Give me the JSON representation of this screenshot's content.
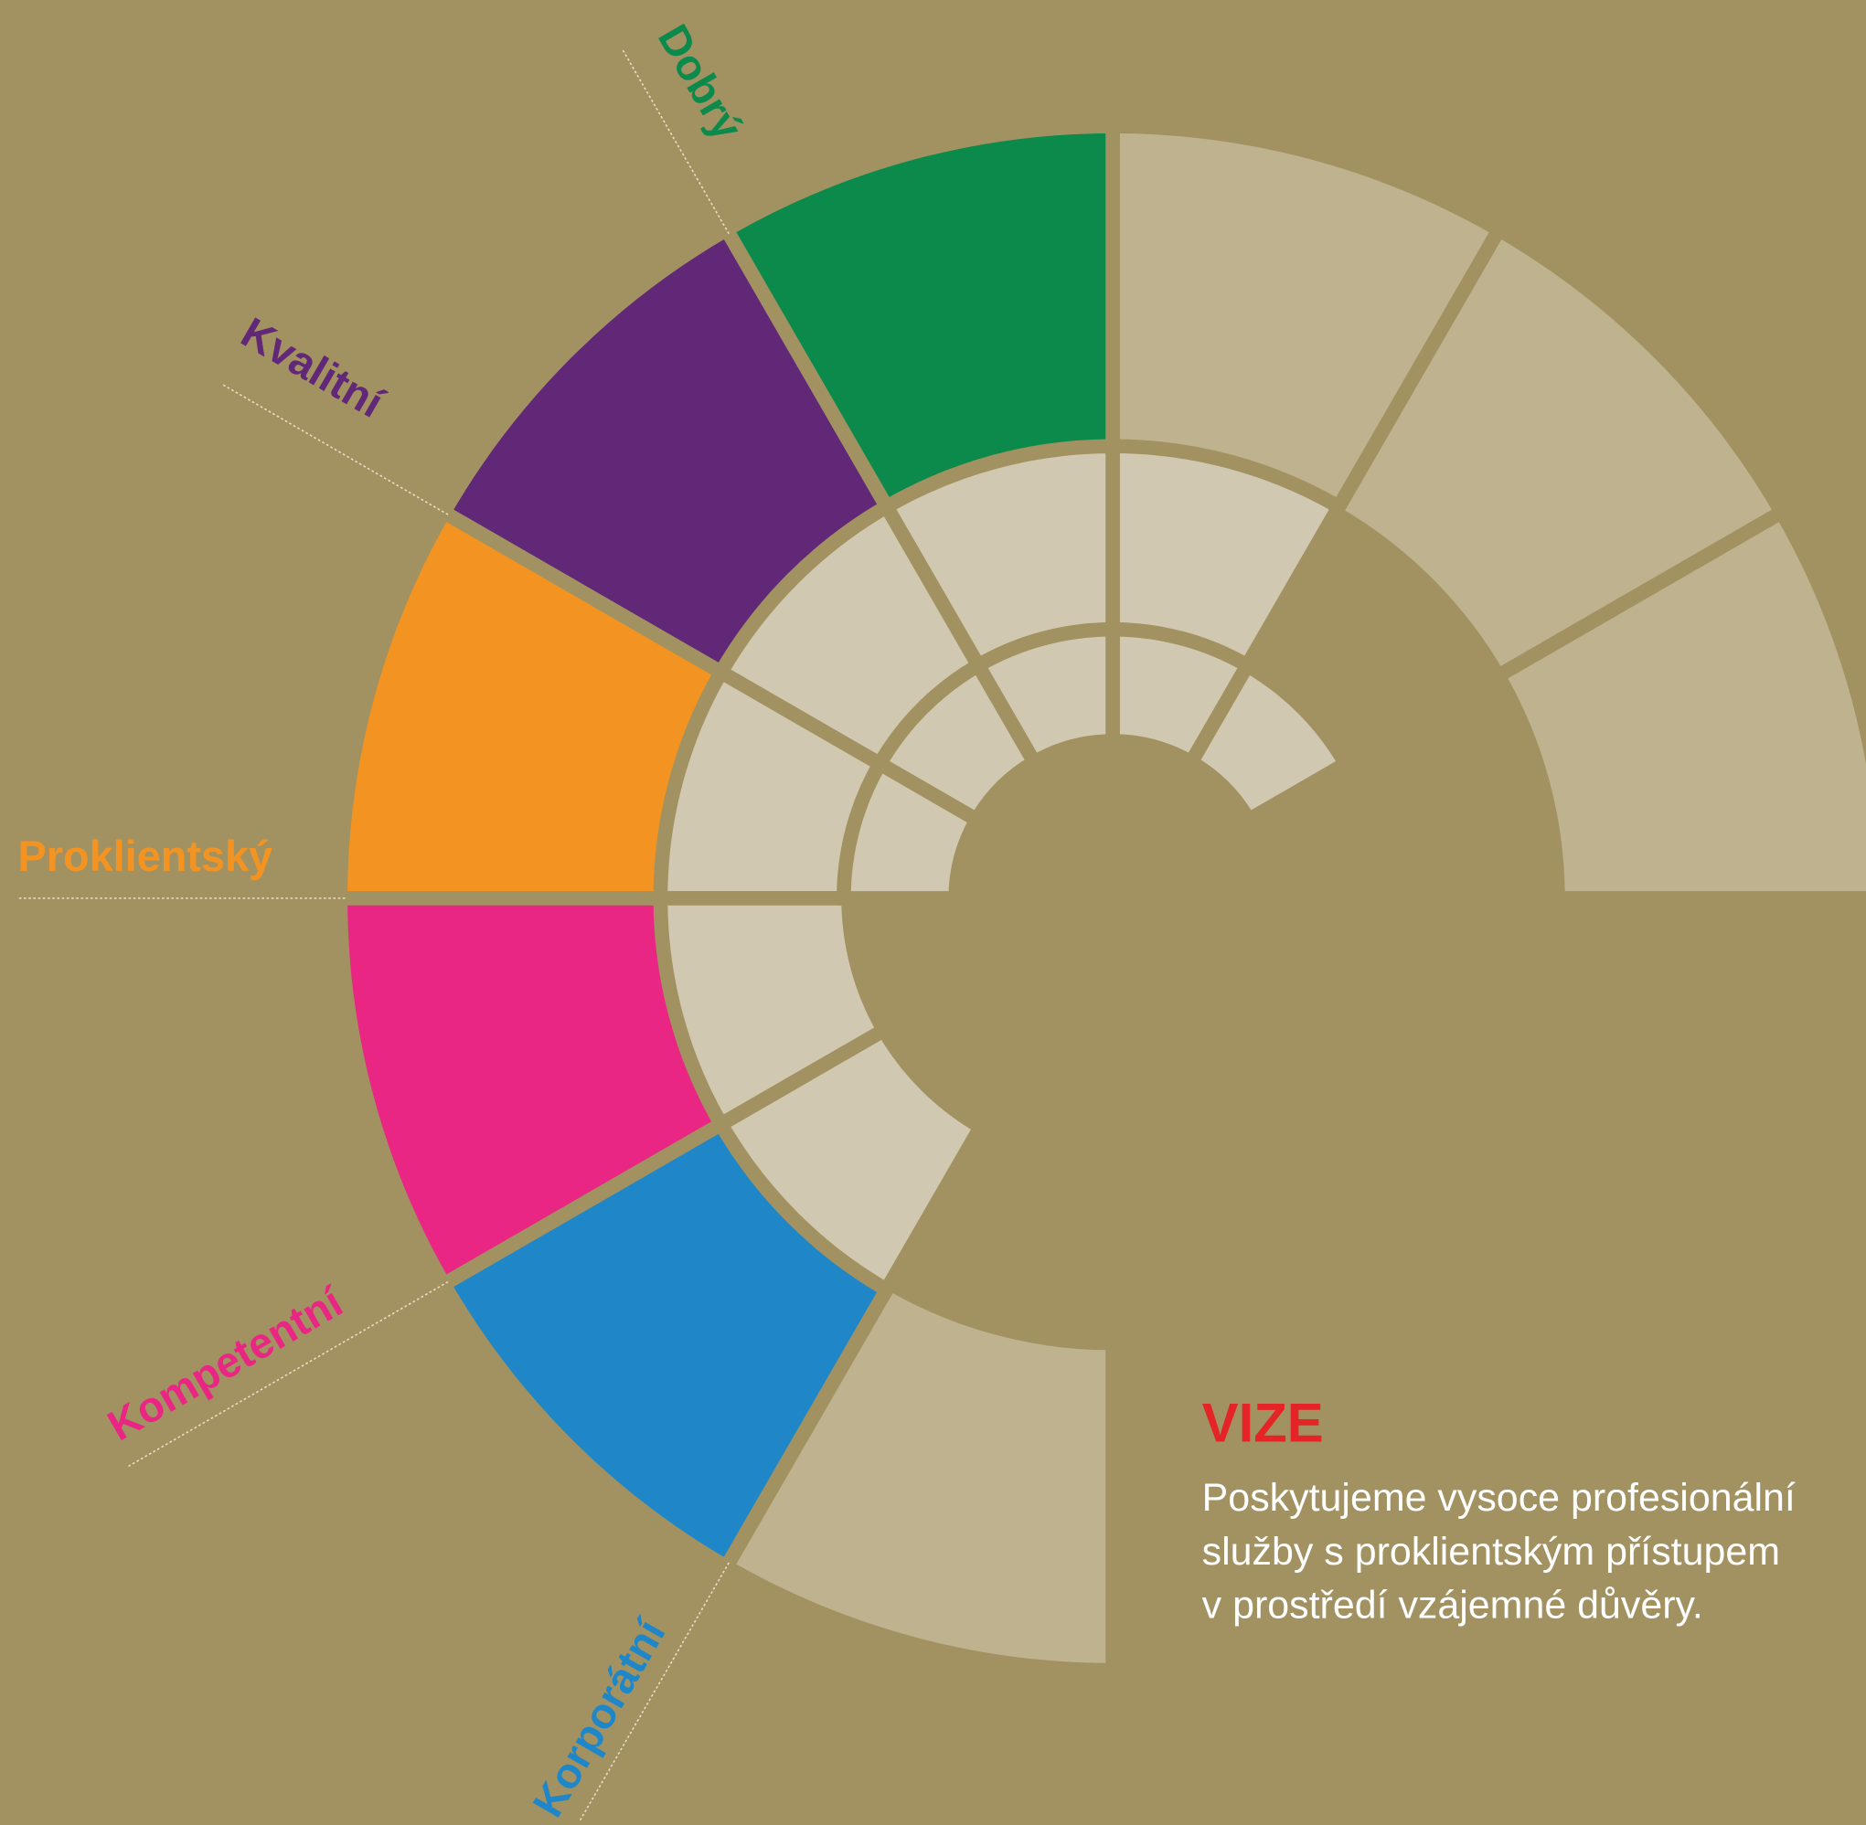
{
  "labels": [
    "Dobrý",
    "Kvalitní",
    "Proklientský",
    "Kompetentní",
    "Korporátní"
  ],
  "vize": {
    "title": "VIZE",
    "lines": [
      "Poskytujeme vysoce profesionální",
      "služby s proklientským přístupem",
      "v prostředí vzájemné důvěry."
    ]
  }
}
